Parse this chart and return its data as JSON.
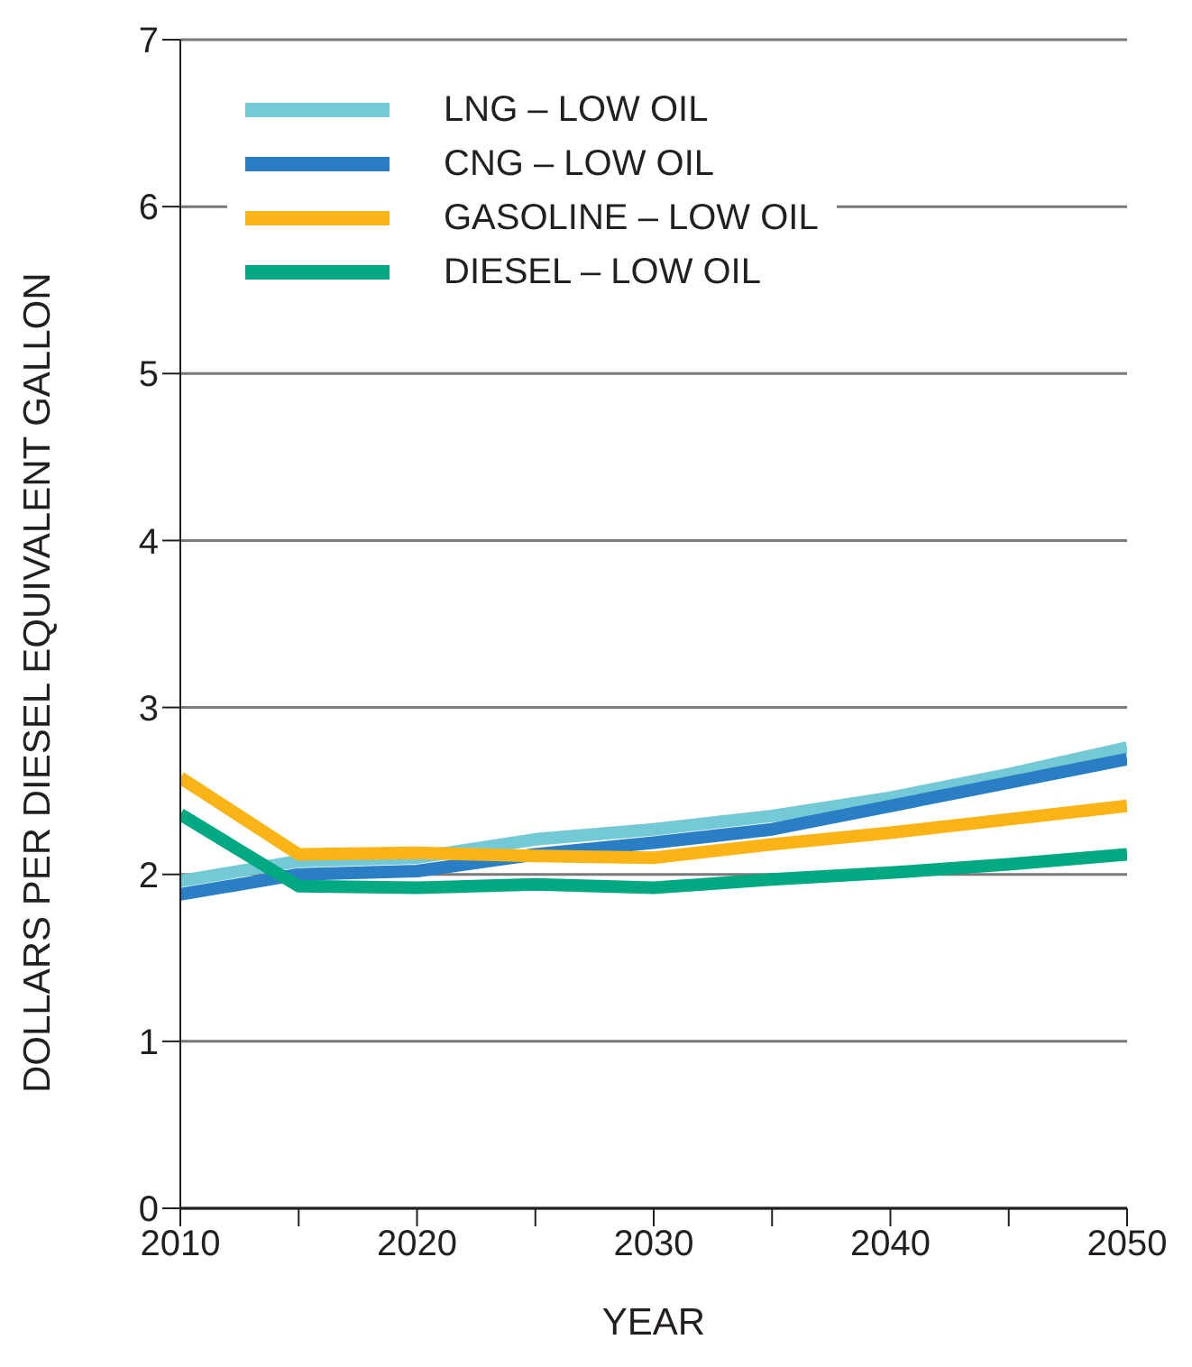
{
  "chart_data": {
    "type": "line",
    "xlabel": "YEAR",
    "ylabel": "DOLLARS PER DIESEL EQUIVALENT GALLON",
    "x": [
      2010,
      2015,
      2020,
      2025,
      2030,
      2035,
      2040,
      2045,
      2050
    ],
    "series": [
      {
        "name": "LNG – LOW OIL",
        "color": "#74c9d6",
        "values": [
          1.96,
          2.08,
          2.1,
          2.21,
          2.27,
          2.35,
          2.46,
          2.6,
          2.76
        ]
      },
      {
        "name": "CNG – LOW OIL",
        "color": "#2a7fc4",
        "values": [
          1.88,
          2.0,
          2.02,
          2.12,
          2.19,
          2.27,
          2.41,
          2.55,
          2.69
        ]
      },
      {
        "name": "GASOLINE – LOW OIL",
        "color": "#fbb416",
        "values": [
          2.58,
          2.12,
          2.13,
          2.11,
          2.1,
          2.18,
          2.25,
          2.33,
          2.41
        ]
      },
      {
        "name": "DIESEL – LOW OIL",
        "color": "#00a982",
        "values": [
          2.36,
          1.93,
          1.92,
          1.94,
          1.92,
          1.97,
          2.01,
          2.06,
          2.12
        ]
      }
    ],
    "xlim": [
      2010,
      2050
    ],
    "xticks": [
      2010,
      {
        "value": 2015,
        "label": null
      },
      2020,
      {
        "value": 2025,
        "label": null
      },
      2030,
      {
        "value": 2035,
        "label": null
      },
      2040,
      {
        "value": 2045,
        "label": null
      },
      2050
    ],
    "ylim": [
      0,
      7
    ],
    "yticks": [
      0,
      1,
      2,
      3,
      4,
      5,
      6,
      7
    ],
    "grid": "y",
    "legend": "top left",
    "marker": "none",
    "line_style": "solid"
  }
}
